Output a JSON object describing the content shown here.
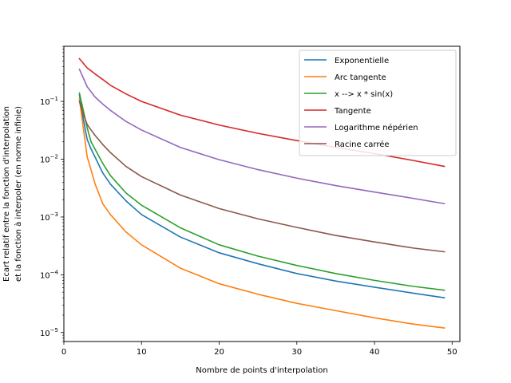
{
  "chart_data": {
    "type": "line",
    "xlabel": "Nombre de points d'interpolation",
    "ylabel_line1": "Ecart relatif entre la fonction d'interpolation",
    "ylabel_line2": "et la fonction à interpoler (en norme infinie)",
    "xlim": [
      0,
      51
    ],
    "ylim": [
      7e-06,
      0.9
    ],
    "yscale": "log",
    "grid": false,
    "legend_position": "top-right",
    "x_ticks": [
      0,
      10,
      20,
      30,
      40,
      50
    ],
    "x_tick_labels": [
      "0",
      "10",
      "20",
      "30",
      "40",
      "50"
    ],
    "y_ticks": [
      1e-05,
      0.0001,
      0.001,
      0.01,
      0.1
    ],
    "y_tick_labels": [
      {
        "base": "10",
        "exp": "−5"
      },
      {
        "base": "10",
        "exp": "−4"
      },
      {
        "base": "10",
        "exp": "−3"
      },
      {
        "base": "10",
        "exp": "−2"
      },
      {
        "base": "10",
        "exp": "−1"
      }
    ],
    "series": [
      {
        "name": "Exponentielle",
        "color": "#1f77b4",
        "x": [
          2,
          2.5,
          3,
          3.5,
          4,
          5,
          6,
          8,
          10,
          15,
          20,
          25,
          30,
          35,
          40,
          45,
          49
        ],
        "y": [
          0.13,
          0.05,
          0.022,
          0.015,
          0.011,
          0.0058,
          0.0037,
          0.0019,
          0.0011,
          0.00045,
          0.00024,
          0.000155,
          0.000105,
          7.8e-05,
          6.1e-05,
          4.8e-05,
          4e-05
        ]
      },
      {
        "name": "Arc tangente",
        "color": "#ff7f0e",
        "x": [
          2,
          2.5,
          3,
          3.5,
          4,
          5,
          6,
          8,
          10,
          15,
          20,
          25,
          30,
          35,
          40,
          45,
          49
        ],
        "y": [
          0.11,
          0.035,
          0.011,
          0.0065,
          0.0038,
          0.0017,
          0.0011,
          0.00055,
          0.00033,
          0.00013,
          7e-05,
          4.6e-05,
          3.2e-05,
          2.4e-05,
          1.8e-05,
          1.4e-05,
          1.2e-05
        ]
      },
      {
        "name": "x --> x * sin(x)",
        "color": "#2ca02c",
        "x": [
          2,
          2.5,
          3,
          3.5,
          4,
          5,
          6,
          8,
          10,
          15,
          20,
          25,
          30,
          35,
          40,
          45,
          49
        ],
        "y": [
          0.14,
          0.07,
          0.035,
          0.02,
          0.015,
          0.0085,
          0.0052,
          0.0026,
          0.0016,
          0.00065,
          0.00033,
          0.00021,
          0.000145,
          0.000105,
          8e-05,
          6.3e-05,
          5.4e-05
        ]
      },
      {
        "name": "Tangente",
        "color": "#d62728",
        "x": [
          2,
          3,
          4,
          5,
          6,
          8,
          10,
          15,
          20,
          25,
          30,
          35,
          40,
          45,
          49
        ],
        "y": [
          0.55,
          0.38,
          0.3,
          0.24,
          0.19,
          0.135,
          0.1,
          0.058,
          0.039,
          0.028,
          0.021,
          0.016,
          0.0125,
          0.0095,
          0.0075
        ]
      },
      {
        "name": "Logarithme népérien",
        "color": "#9467bd",
        "x": [
          2,
          3,
          4,
          5,
          6,
          8,
          10,
          15,
          20,
          25,
          30,
          35,
          40,
          45,
          49
        ],
        "y": [
          0.36,
          0.18,
          0.12,
          0.09,
          0.07,
          0.045,
          0.032,
          0.016,
          0.0098,
          0.0066,
          0.0047,
          0.0035,
          0.0027,
          0.0021,
          0.0017
        ]
      },
      {
        "name": "Racine carrée",
        "color": "#8c564b",
        "x": [
          2,
          2.5,
          3,
          3.5,
          4,
          5,
          6,
          8,
          10,
          15,
          20,
          25,
          30,
          35,
          40,
          45,
          49
        ],
        "y": [
          0.1,
          0.06,
          0.04,
          0.032,
          0.026,
          0.018,
          0.013,
          0.0075,
          0.005,
          0.0024,
          0.0014,
          0.00093,
          0.00066,
          0.00048,
          0.00037,
          0.00029,
          0.00025
        ]
      }
    ]
  }
}
